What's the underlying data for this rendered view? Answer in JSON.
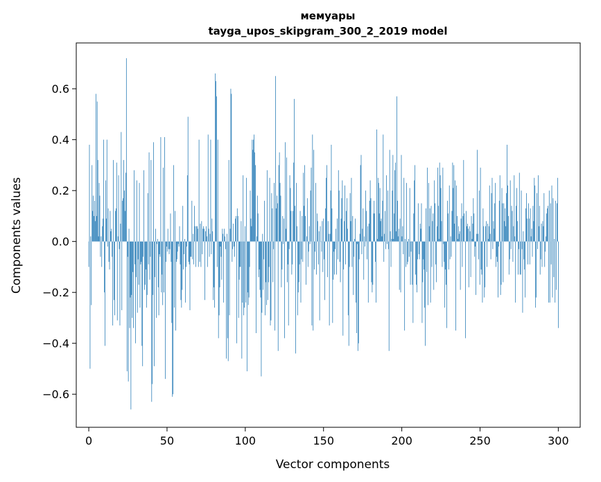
{
  "chart_data": {
    "type": "bar",
    "title_line1": "мемуары",
    "title_line2": "tayga_upos_skipgram_300_2_2019 model",
    "xlabel": "Vector components",
    "ylabel": "Components values",
    "xlim": [
      -8,
      314
    ],
    "ylim": [
      -0.73,
      0.78
    ],
    "x_ticks": [
      0,
      50,
      100,
      150,
      200,
      250,
      300
    ],
    "x_tick_labels": [
      "0",
      "50",
      "100",
      "150",
      "200",
      "250",
      "300"
    ],
    "y_ticks": [
      -0.6,
      -0.4,
      -0.2,
      0.0,
      0.2,
      0.4,
      0.6
    ],
    "y_tick_labels": [
      "−0.6",
      "−0.4",
      "−0.2",
      "0.0",
      "0.2",
      "0.4",
      "0.6"
    ],
    "bar_color": "#1f77b4",
    "grid": false,
    "legend": "none",
    "values": [
      -0.1,
      0.38,
      -0.5,
      0.02,
      -0.25,
      0.3,
      0.12,
      0.18,
      0.1,
      0.16,
      0.08,
      0.58,
      0.1,
      0.55,
      0.32,
      0.02,
      0.23,
      0.18,
      -0.06,
      0.02,
      -0.1,
      0.06,
      0.09,
      0.4,
      -0.2,
      -0.41,
      0.24,
      0.09,
      0.4,
      -0.02,
      0.13,
      -0.08,
      -0.11,
      0.12,
      0.04,
      0.05,
      -0.06,
      -0.33,
      0.32,
      -0.23,
      -0.29,
      0.12,
      0.13,
      0.31,
      -0.31,
      0.02,
      0.26,
      -0.03,
      -0.33,
      0.07,
      0.43,
      -0.27,
      0.16,
      0.17,
      0.32,
      0.2,
      0.12,
      0.27,
      0.72,
      -0.51,
      -0.06,
      -0.55,
      0.05,
      -0.34,
      -0.22,
      -0.66,
      -0.21,
      -0.3,
      -0.12,
      -0.34,
      0.28,
      -0.09,
      -0.4,
      -0.14,
      0.24,
      -0.28,
      -0.07,
      -0.17,
      0.23,
      -0.26,
      -0.09,
      -0.08,
      -0.41,
      -0.49,
      -0.06,
      0.28,
      -0.19,
      -0.17,
      -0.11,
      -0.26,
      -0.21,
      0.19,
      -0.09,
      0.35,
      -0.15,
      -0.06,
      0.32,
      -0.63,
      -0.56,
      -0.21,
      0.39,
      -0.49,
      -0.14,
      0.05,
      -0.3,
      -0.01,
      0.01,
      -0.18,
      -0.29,
      -0.05,
      -0.06,
      0.41,
      -0.2,
      -0.13,
      -0.25,
      0.29,
      -0.2,
      0.41,
      -0.54,
      -0.08,
      -0.02,
      -0.04,
      0.05,
      -0.03,
      -0.05,
      -0.03,
      0.11,
      -0.08,
      -0.32,
      -0.61,
      -0.6,
      0.3,
      -0.26,
      0.12,
      -0.35,
      -0.08,
      -0.07,
      -0.04,
      -0.01,
      -0.02,
      0.06,
      -0.09,
      -0.23,
      -0.26,
      -0.19,
      0.14,
      -0.11,
      -0.05,
      0.01,
      -0.24,
      -0.1,
      -0.02,
      0.26,
      0.49,
      -0.08,
      -0.09,
      -0.27,
      -0.06,
      -0.06,
      0.16,
      -0.07,
      0.03,
      -0.09,
      0.14,
      0.06,
      -0.1,
      0.06,
      0.06,
      0.05,
      -0.1,
      0.4,
      -0.08,
      0.07,
      -0.1,
      0.08,
      -0.05,
      0.05,
      0.06,
      0.05,
      -0.23,
      0.04,
      0.06,
      0.02,
      -0.1,
      0.42,
      0.05,
      -0.06,
      0.03,
      0.4,
      -0.05,
      0.09,
      0.04,
      -0.23,
      -0.18,
      -0.26,
      0.66,
      0.63,
      0.57,
      -0.1,
      0.4,
      -0.38,
      -0.29,
      -0.18,
      -0.02,
      -0.06,
      -0.15,
      0.05,
      0.03,
      -0.24,
      0.05,
      0.02,
      -0.03,
      -0.46,
      0.03,
      -0.38,
      -0.47,
      0.32,
      -0.29,
      0.05,
      0.6,
      0.58,
      -0.08,
      -0.03,
      0.07,
      -0.02,
      -0.06,
      0.09,
      0.1,
      -0.4,
      0.13,
      0.1,
      -0.3,
      -0.15,
      -0.1,
      -0.1,
      0.08,
      -0.46,
      -0.24,
      0.26,
      -0.29,
      -0.26,
      0.06,
      -0.24,
      0.25,
      -0.51,
      -0.2,
      -0.25,
      -0.22,
      -0.1,
      0.2,
      0.09,
      0.06,
      0.4,
      0.36,
      0.4,
      0.42,
      0.35,
      0.3,
      -0.36,
      0.02,
      0.18,
      0.11,
      -0.14,
      -0.11,
      -0.19,
      -0.22,
      -0.53,
      -0.28,
      0.03,
      -0.19,
      -0.07,
      0.16,
      -0.29,
      -0.16,
      -0.25,
      0.28,
      -0.23,
      -0.16,
      -0.1,
      0.25,
      -0.33,
      -0.31,
      0.19,
      0.13,
      -0.16,
      -0.03,
      0.23,
      -0.35,
      0.65,
      0.13,
      0.18,
      0.15,
      -0.43,
      0.3,
      0.35,
      0.23,
      0.18,
      -0.18,
      -0.11,
      0.1,
      -0.01,
      0.09,
      -0.38,
      0.39,
      0.05,
      0.33,
      -0.16,
      -0.09,
      -0.33,
      -0.03,
      0.26,
      0.21,
      0.12,
      -0.13,
      -0.09,
      0.12,
      0.31,
      0.56,
      0.14,
      -0.44,
      0.23,
      0.06,
      -0.29,
      -0.2,
      -0.16,
      -0.09,
      0.12,
      -0.24,
      -0.07,
      0.1,
      -0.08,
      0.27,
      0.14,
      0.3,
      0.1,
      -0.17,
      0.02,
      0.17,
      -0.1,
      -0.04,
      0.06,
      -0.01,
      0.2,
      0.29,
      -0.33,
      0.42,
      -0.35,
      0.36,
      -0.11,
      -0.04,
      0.23,
      -0.13,
      0.11,
      0.08,
      -0.09,
      0.04,
      -0.31,
      0.06,
      0.0,
      -0.04,
      0.08,
      -0.12,
      0.09,
      -0.07,
      -0.23,
      0.13,
      0.25,
      0.3,
      -0.14,
      0.08,
      0.03,
      -0.33,
      0.03,
      0.2,
      0.38,
      0.13,
      -0.32,
      -0.15,
      -0.04,
      -0.13,
      -0.03,
      0.05,
      -0.13,
      0.09,
      -0.07,
      0.28,
      0.2,
      -0.08,
      -0.16,
      0.09,
      0.17,
      0.24,
      -0.37,
      -0.11,
      0.08,
      0.22,
      -0.09,
      0.12,
      0.17,
      0.05,
      -0.29,
      -0.41,
      -0.1,
      0.19,
      0.08,
      0.25,
      -0.1,
      0.1,
      -0.21,
      -0.06,
      0.01,
      0.09,
      -0.24,
      -0.36,
      -0.01,
      -0.43,
      -0.4,
      -0.07,
      0.03,
      0.3,
      0.34,
      -0.05,
      0.05,
      0.13,
      -0.15,
      0.02,
      -0.02,
      0.2,
      0.12,
      -0.07,
      0.06,
      -0.24,
      0.07,
      0.16,
      0.24,
      0.17,
      -0.16,
      -0.2,
      -0.17,
      0.11,
      0.16,
      0.11,
      -0.08,
      -0.24,
      0.44,
      0.01,
      0.25,
      0.23,
      0.11,
      0.21,
      0.08,
      0.09,
      0.02,
      0.16,
      0.42,
      -0.08,
      0.03,
      0.12,
      -0.03,
      0.26,
      -0.01,
      0.2,
      -0.03,
      -0.43,
      0.36,
      0.04,
      -0.1,
      0.01,
      0.2,
      0.34,
      0.01,
      0.11,
      0.28,
      0.31,
      0.04,
      0.57,
      0.16,
      0.02,
      0.05,
      -0.19,
      0.09,
      -0.2,
      0.34,
      0.02,
      0.06,
      -0.05,
      0.25,
      -0.35,
      0.01,
      -0.1,
      0.23,
      -0.09,
      -0.08,
      0.01,
      -0.06,
      0.21,
      -0.17,
      -0.04,
      0.0,
      -0.17,
      -0.32,
      0.11,
      0.24,
      0.3,
      -0.13,
      -0.17,
      -0.2,
      -0.07,
      0.15,
      -0.05,
      -0.07,
      0.07,
      0.05,
      0.15,
      -0.32,
      -0.16,
      -0.07,
      -0.11,
      -0.26,
      -0.41,
      0.13,
      -0.12,
      0.29,
      -0.25,
      0.23,
      0.06,
      0.13,
      -0.24,
      0.14,
      -0.1,
      0.08,
      0.11,
      -0.19,
      0.24,
      0.15,
      -0.09,
      -0.16,
      0.06,
      0.29,
      0.14,
      0.01,
      0.31,
      0.26,
      0.21,
      0.08,
      -0.1,
      0.29,
      -0.01,
      -0.08,
      -0.26,
      -0.11,
      -0.17,
      -0.34,
      0.16,
      0.11,
      -0.11,
      0.22,
      -0.07,
      0.02,
      -0.06,
      0.12,
      0.31,
      0.21,
      0.3,
      0.07,
      0.24,
      -0.35,
      0.22,
      0.1,
      0.01,
      0.06,
      0.03,
      0.04,
      -0.19,
      0.09,
      0.15,
      -0.1,
      0.1,
      0.32,
      0.11,
      0.0,
      -0.38,
      0.12,
      0.06,
      0.07,
      0.05,
      -0.18,
      0.06,
      0.04,
      -0.14,
      0.1,
      0.01,
      0.07,
      0.17,
      0.11,
      -0.06,
      -0.02,
      -0.21,
      0.03,
      0.36,
      0.03,
      -0.07,
      0.2,
      -0.17,
      0.29,
      -0.11,
      -0.13,
      -0.24,
      0.13,
      0.06,
      -0.22,
      -0.18,
      0.06,
      0.08,
      -0.1,
      0.07,
      0.01,
      0.06,
      0.22,
      0.03,
      -0.07,
      0.19,
      0.25,
      -0.03,
      0.08,
      0.05,
      0.15,
      0.23,
      -0.1,
      -0.06,
      -0.08,
      -0.22,
      -0.02,
      0.16,
      0.26,
      -0.21,
      -0.17,
      0.21,
      0.15,
      -0.16,
      0.15,
      0.08,
      0.13,
      0.06,
      0.19,
      0.38,
      0.22,
      0.1,
      -0.13,
      -0.07,
      0.24,
      -0.03,
      0.14,
      0.12,
      -0.08,
      0.06,
      0.26,
      0.02,
      -0.24,
      0.14,
      0.21,
      0.08,
      -0.13,
      -0.03,
      0.27,
      -0.13,
      -0.13,
      0.2,
      -0.03,
      -0.28,
      0.04,
      -0.07,
      -0.11,
      -0.22,
      0.13,
      0.19,
      0.09,
      -0.09,
      0.15,
      0.09,
      -0.09,
      0.13,
      0.02,
      0.05,
      -0.06,
      0.14,
      0.08,
      0.25,
      0.22,
      -0.26,
      -0.22,
      0.19,
      -0.03,
      0.26,
      0.06,
      0.14,
      -0.13,
      -0.07,
      0.07,
      -0.1,
      0.08,
      0.06,
      0.19,
      -0.1,
      -0.04,
      0.02,
      0.11,
      0.13,
      0.14,
      -0.24,
      0.2,
      -0.24,
      0.15,
      -0.09,
      0.22,
      -0.22,
      0.17,
      -0.14,
      0.01,
      -0.24,
      0.16,
      -0.19,
      0.15,
      0.25,
      -0.34
    ]
  }
}
